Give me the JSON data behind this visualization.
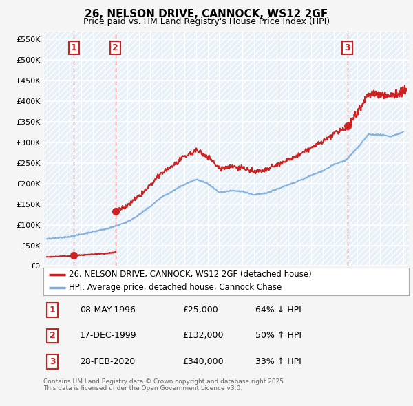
{
  "title": "26, NELSON DRIVE, CANNOCK, WS12 2GF",
  "subtitle": "Price paid vs. HM Land Registry's House Price Index (HPI)",
  "xlim": [
    1993.7,
    2025.5
  ],
  "ylim": [
    0,
    570000
  ],
  "yticks": [
    0,
    50000,
    100000,
    150000,
    200000,
    250000,
    300000,
    350000,
    400000,
    450000,
    500000,
    550000
  ],
  "ytick_labels": [
    "£0",
    "£50K",
    "£100K",
    "£150K",
    "£200K",
    "£250K",
    "£300K",
    "£350K",
    "£400K",
    "£450K",
    "£500K",
    "£550K"
  ],
  "background_color": "#f5f5f5",
  "plot_bg_color": "#e8f0f8",
  "red_color": "#cc2222",
  "blue_color": "#7aacdc",
  "vline_color": "#dd6666",
  "sale_years": [
    1996.36,
    1999.96,
    2020.16
  ],
  "sale_prices": [
    25000,
    132000,
    340000
  ],
  "sale_labels": [
    "1",
    "2",
    "3"
  ],
  "legend_line1": "26, NELSON DRIVE, CANNOCK, WS12 2GF (detached house)",
  "legend_line2": "HPI: Average price, detached house, Cannock Chase",
  "table": [
    {
      "num": "1",
      "date": "08-MAY-1996",
      "price": "£25,000",
      "change": "64% ↓ HPI"
    },
    {
      "num": "2",
      "date": "17-DEC-1999",
      "price": "£132,000",
      "change": "50% ↑ HPI"
    },
    {
      "num": "3",
      "date": "28-FEB-2020",
      "price": "£340,000",
      "change": "33% ↑ HPI"
    }
  ],
  "footnote": "Contains HM Land Registry data © Crown copyright and database right 2025.\nThis data is licensed under the Open Government Licence v3.0.",
  "hpi_years": [
    1994,
    1995,
    1996,
    1997,
    1998,
    1999,
    2000,
    2001,
    2002,
    2003,
    2004,
    2005,
    2006,
    2007,
    2008,
    2009,
    2010,
    2011,
    2012,
    2013,
    2014,
    2015,
    2016,
    2017,
    2018,
    2019,
    2020,
    2021,
    2022,
    2023,
    2024,
    2025
  ],
  "hpi_prices": [
    65000,
    68000,
    72000,
    78000,
    84000,
    90000,
    98000,
    108000,
    125000,
    145000,
    168000,
    182000,
    198000,
    210000,
    200000,
    178000,
    182000,
    180000,
    172000,
    175000,
    185000,
    195000,
    205000,
    218000,
    230000,
    245000,
    255000,
    285000,
    320000,
    318000,
    315000,
    325000
  ]
}
